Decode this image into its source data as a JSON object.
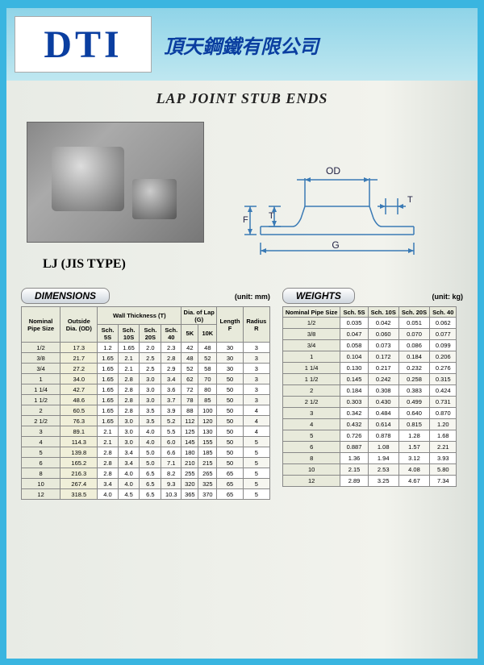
{
  "header": {
    "logo": "DTI",
    "company": "頂天鋼鐵有限公司"
  },
  "title": "LAP JOINT STUB ENDS",
  "subtype": "LJ (JIS TYPE)",
  "diagram": {
    "labels": {
      "OD": "OD",
      "T": "T",
      "F": "F",
      "G": "G"
    },
    "stroke": "#3a7ab5",
    "fill": "#e8f0f7"
  },
  "dimensions": {
    "heading": "DIMENSIONS",
    "unit": "(unit: mm)",
    "columns": {
      "nominal": "Nominal\nPipe\nSize",
      "od": "Outside\nDia.\n(OD)",
      "wall_group": "Wall Thickness (T)",
      "wall": [
        "Sch.\n5S",
        "Sch.\n10S",
        "Sch.\n20S",
        "Sch.\n40"
      ],
      "lap_group": "Dia. of Lap (G)",
      "lap": [
        "5K",
        "10K"
      ],
      "length": "Length\nF",
      "radius": "Radius\nR"
    },
    "rows": [
      [
        "1/2",
        "17.3",
        "1.2",
        "1.65",
        "2.0",
        "2.3",
        "42",
        "48",
        "30",
        "3"
      ],
      [
        "3/8",
        "21.7",
        "1.65",
        "2.1",
        "2.5",
        "2.8",
        "48",
        "52",
        "30",
        "3"
      ],
      [
        "3/4",
        "27.2",
        "1.65",
        "2.1",
        "2.5",
        "2.9",
        "52",
        "58",
        "30",
        "3"
      ],
      [
        "1",
        "34.0",
        "1.65",
        "2.8",
        "3.0",
        "3.4",
        "62",
        "70",
        "50",
        "3"
      ],
      [
        "1 1/4",
        "42.7",
        "1.65",
        "2.8",
        "3.0",
        "3.6",
        "72",
        "80",
        "50",
        "3"
      ],
      [
        "1 1/2",
        "48.6",
        "1.65",
        "2.8",
        "3.0",
        "3.7",
        "78",
        "85",
        "50",
        "3"
      ],
      [
        "2",
        "60.5",
        "1.65",
        "2.8",
        "3.5",
        "3.9",
        "88",
        "100",
        "50",
        "4"
      ],
      [
        "2 1/2",
        "76.3",
        "1.65",
        "3.0",
        "3.5",
        "5.2",
        "112",
        "120",
        "50",
        "4"
      ],
      [
        "3",
        "89.1",
        "2.1",
        "3.0",
        "4.0",
        "5.5",
        "125",
        "130",
        "50",
        "4"
      ],
      [
        "4",
        "114.3",
        "2.1",
        "3.0",
        "4.0",
        "6.0",
        "145",
        "155",
        "50",
        "5"
      ],
      [
        "5",
        "139.8",
        "2.8",
        "3.4",
        "5.0",
        "6.6",
        "180",
        "185",
        "50",
        "5"
      ],
      [
        "6",
        "165.2",
        "2.8",
        "3.4",
        "5.0",
        "7.1",
        "210",
        "215",
        "50",
        "5"
      ],
      [
        "8",
        "216.3",
        "2.8",
        "4.0",
        "6.5",
        "8.2",
        "255",
        "265",
        "65",
        "5"
      ],
      [
        "10",
        "267.4",
        "3.4",
        "4.0",
        "6.5",
        "9.3",
        "320",
        "325",
        "65",
        "5"
      ],
      [
        "12",
        "318.5",
        "4.0",
        "4.5",
        "6.5",
        "10.3",
        "365",
        "370",
        "65",
        "5"
      ]
    ]
  },
  "weights": {
    "heading": "WEIGHTS",
    "unit": "(unit: kg)",
    "columns": {
      "nominal": "Nominal\nPipe\nSize",
      "sch": [
        "Sch.\n5S",
        "Sch.\n10S",
        "Sch.\n20S",
        "Sch.\n40"
      ]
    },
    "rows": [
      [
        "1/2",
        "0.035",
        "0.042",
        "0.051",
        "0.062"
      ],
      [
        "3/8",
        "0.047",
        "0.060",
        "0.070",
        "0.077"
      ],
      [
        "3/4",
        "0.058",
        "0.073",
        "0.086",
        "0.099"
      ],
      [
        "1",
        "0.104",
        "0.172",
        "0.184",
        "0.206"
      ],
      [
        "1 1/4",
        "0.130",
        "0.217",
        "0.232",
        "0.276"
      ],
      [
        "1 1/2",
        "0.145",
        "0.242",
        "0.258",
        "0.315"
      ],
      [
        "2",
        "0.184",
        "0.308",
        "0.383",
        "0.424"
      ],
      [
        "2 1/2",
        "0.303",
        "0.430",
        "0.499",
        "0.731"
      ],
      [
        "3",
        "0.342",
        "0.484",
        "0.640",
        "0.870"
      ],
      [
        "4",
        "0.432",
        "0.614",
        "0.815",
        "1.20"
      ],
      [
        "5",
        "0.726",
        "0.878",
        "1.28",
        "1.68"
      ],
      [
        "6",
        "0.887",
        "1.08",
        "1.57",
        "2.21"
      ],
      [
        "8",
        "1.36",
        "1.94",
        "3.12",
        "3.93"
      ],
      [
        "10",
        "2.15",
        "2.53",
        "4.08",
        "5.80"
      ],
      [
        "12",
        "2.89",
        "3.25",
        "4.67",
        "7.34"
      ]
    ]
  }
}
